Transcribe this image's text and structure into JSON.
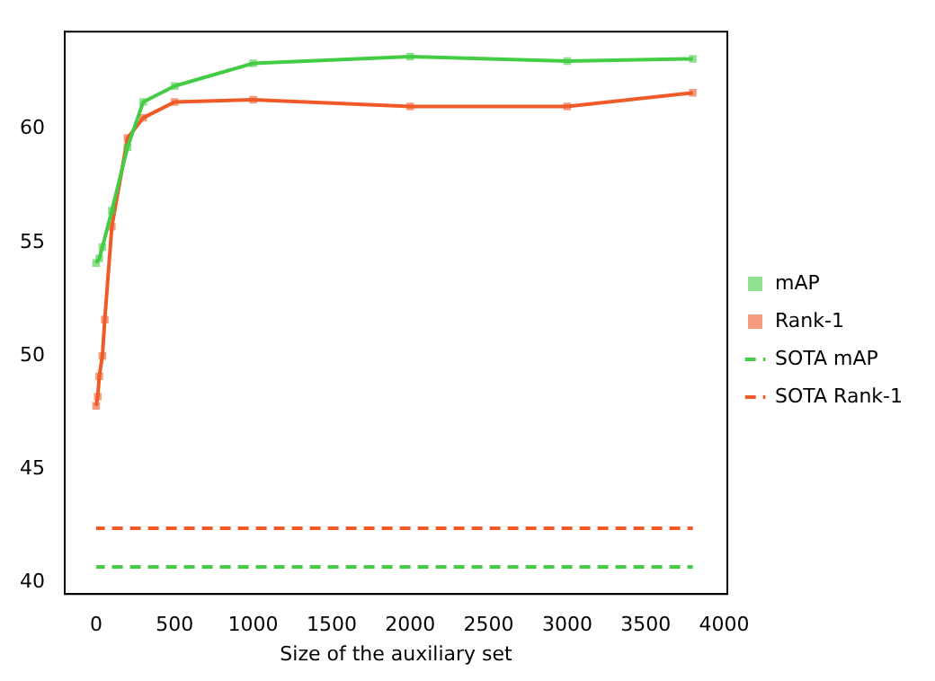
{
  "chart_data": {
    "type": "line",
    "xlabel": "Size of the auxiliary set",
    "xlim": [
      -200,
      4020
    ],
    "xticks": [
      0,
      500,
      1000,
      1500,
      2000,
      2500,
      3000,
      3500,
      4000
    ],
    "ylim": [
      39.5,
      64.3
    ],
    "yticks": [
      40,
      45,
      50,
      55,
      60
    ],
    "grid": false,
    "legend": "right",
    "series": [
      {
        "name": "mAP",
        "color": "#44cc44",
        "marker": "square",
        "line_style": "solid",
        "x": [
          0,
          20,
          40,
          100,
          200,
          300,
          500,
          1000,
          2000,
          3000,
          3800
        ],
        "values": [
          54.1,
          54.3,
          54.8,
          56.4,
          59.2,
          61.2,
          61.9,
          62.9,
          63.2,
          63.0,
          63.1
        ]
      },
      {
        "name": "Rank-1",
        "color": "#f05a28",
        "marker": "square",
        "line_style": "solid",
        "x": [
          0,
          10,
          20,
          40,
          55,
          100,
          200,
          300,
          500,
          1000,
          2000,
          3000,
          3800
        ],
        "values": [
          47.8,
          48.2,
          49.1,
          50.0,
          51.6,
          55.7,
          59.6,
          60.5,
          61.2,
          61.3,
          61.0,
          61.0,
          61.6
        ]
      },
      {
        "name": "SOTA mAP",
        "color": "#44cc44",
        "marker": "none",
        "line_style": "dashed",
        "x": [
          0,
          3800
        ],
        "values": [
          40.7,
          40.7
        ]
      },
      {
        "name": "SOTA Rank-1",
        "color": "#f05a28",
        "marker": "none",
        "line_style": "dashed",
        "x": [
          0,
          3800
        ],
        "values": [
          42.4,
          42.4
        ]
      }
    ]
  }
}
